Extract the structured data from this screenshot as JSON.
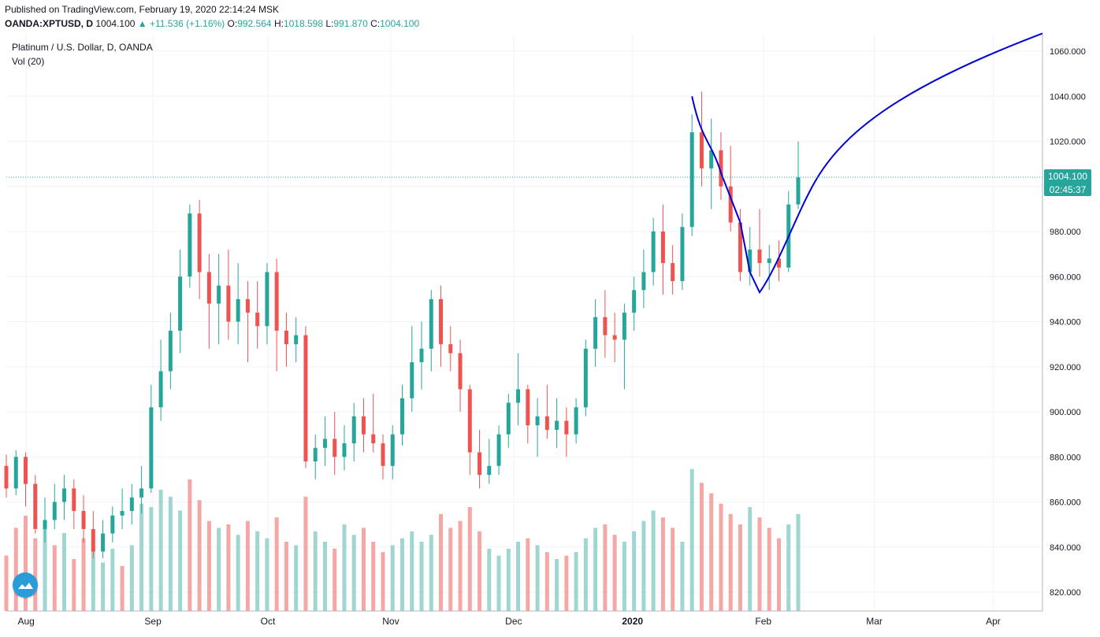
{
  "header": {
    "published": "Published on TradingView.com, February 19, 2020 22:14:24 MSK",
    "symbol": "OANDA:XPTUSD, D",
    "last": "1004.100",
    "change_icon": "triangle-up-icon",
    "change": "+11.536 (+1.16%)",
    "o_label": "O:",
    "o_value": "992.564",
    "h_label": "H:",
    "h_value": "1018.598",
    "l_label": "L:",
    "l_value": "991.870",
    "c_label": "C:",
    "c_value": "1004.100"
  },
  "legend": {
    "title": "Platinum / U.S. Dollar, D, OANDA",
    "volume": "Vol (20)"
  },
  "price_tag": {
    "value": "1004.100",
    "countdown": "02:45:37"
  },
  "colors": {
    "up": "#26a69a",
    "down": "#ef5350",
    "vol_up": "#9fd6d0",
    "vol_down": "#f4a7a5",
    "projection": "#0000d6",
    "tag": "#26a69a"
  },
  "logo_icon": "tradingview-cloud-icon",
  "chart_data": {
    "type": "candlestick",
    "y_ticks": [
      "820.000",
      "840.000",
      "860.000",
      "880.000",
      "900.000",
      "920.000",
      "940.000",
      "960.000",
      "980.000",
      "1000.000",
      "1020.000",
      "1040.000",
      "1060.000"
    ],
    "x_labels": [
      {
        "label": "Aug",
        "date": "2019-08-01"
      },
      {
        "label": "Sep",
        "date": "2019-09-02"
      },
      {
        "label": "Oct",
        "date": "2019-10-01"
      },
      {
        "label": "Nov",
        "date": "2019-11-01"
      },
      {
        "label": "Dec",
        "date": "2019-12-02"
      },
      {
        "label": "2020",
        "date": "2020-01-01"
      },
      {
        "label": "Feb",
        "date": "2020-02-03"
      },
      {
        "label": "Mar",
        "date": "2020-03-02"
      },
      {
        "label": "Apr",
        "date": "2020-04-01"
      }
    ],
    "ohlc": [
      [
        876,
        881,
        862,
        866
      ],
      [
        866,
        883,
        863,
        880
      ],
      [
        880,
        882,
        858,
        868
      ],
      [
        868,
        872,
        846,
        848
      ],
      [
        848,
        862,
        842,
        852
      ],
      [
        852,
        868,
        848,
        860
      ],
      [
        860,
        872,
        852,
        866
      ],
      [
        866,
        870,
        848,
        856
      ],
      [
        856,
        863,
        842,
        848
      ],
      [
        848,
        856,
        835,
        838
      ],
      [
        838,
        852,
        835,
        846
      ],
      [
        846,
        858,
        842,
        854
      ],
      [
        854,
        866,
        848,
        856
      ],
      [
        856,
        868,
        850,
        862
      ],
      [
        862,
        876,
        855,
        866
      ],
      [
        866,
        912,
        864,
        902
      ],
      [
        902,
        932,
        896,
        918
      ],
      [
        918,
        944,
        910,
        936
      ],
      [
        936,
        972,
        926,
        960
      ],
      [
        960,
        992,
        955,
        988
      ],
      [
        988,
        994,
        950,
        962
      ],
      [
        962,
        970,
        928,
        948
      ],
      [
        948,
        970,
        930,
        956
      ],
      [
        956,
        972,
        932,
        940
      ],
      [
        940,
        966,
        930,
        950
      ],
      [
        950,
        958,
        922,
        944
      ],
      [
        944,
        958,
        928,
        938
      ],
      [
        938,
        966,
        930,
        962
      ],
      [
        962,
        968,
        918,
        936
      ],
      [
        936,
        944,
        920,
        930
      ],
      [
        930,
        942,
        922,
        934
      ],
      [
        934,
        938,
        875,
        878
      ],
      [
        878,
        890,
        870,
        884
      ],
      [
        884,
        898,
        876,
        888
      ],
      [
        888,
        900,
        872,
        880
      ],
      [
        880,
        894,
        874,
        886
      ],
      [
        886,
        904,
        878,
        898
      ],
      [
        898,
        906,
        882,
        890
      ],
      [
        890,
        908,
        882,
        886
      ],
      [
        886,
        890,
        870,
        876
      ],
      [
        876,
        894,
        870,
        890
      ],
      [
        890,
        912,
        885,
        906
      ],
      [
        906,
        938,
        900,
        922
      ],
      [
        922,
        940,
        910,
        928
      ],
      [
        928,
        954,
        918,
        950
      ],
      [
        950,
        956,
        920,
        930
      ],
      [
        930,
        938,
        918,
        926
      ],
      [
        926,
        932,
        900,
        910
      ],
      [
        910,
        912,
        872,
        882
      ],
      [
        882,
        892,
        866,
        872
      ],
      [
        872,
        888,
        868,
        876
      ],
      [
        876,
        894,
        872,
        890
      ],
      [
        890,
        908,
        884,
        904
      ],
      [
        904,
        926,
        894,
        910
      ],
      [
        910,
        912,
        886,
        894
      ],
      [
        894,
        906,
        880,
        898
      ],
      [
        898,
        912,
        888,
        892
      ],
      [
        892,
        906,
        884,
        896
      ],
      [
        896,
        902,
        880,
        890
      ],
      [
        890,
        906,
        886,
        902
      ],
      [
        902,
        932,
        898,
        928
      ],
      [
        928,
        950,
        920,
        942
      ],
      [
        942,
        954,
        924,
        934
      ],
      [
        934,
        944,
        922,
        932
      ],
      [
        932,
        948,
        910,
        944
      ],
      [
        944,
        960,
        936,
        954
      ],
      [
        954,
        972,
        946,
        962
      ],
      [
        962,
        986,
        956,
        980
      ],
      [
        980,
        992,
        952,
        966
      ],
      [
        966,
        974,
        952,
        958
      ],
      [
        958,
        988,
        954,
        982
      ],
      [
        982,
        1032,
        978,
        1024
      ],
      [
        1024,
        1042,
        1000,
        1008
      ],
      [
        1008,
        1030,
        990,
        1016
      ],
      [
        1016,
        1024,
        994,
        1000
      ],
      [
        1000,
        1018,
        980,
        984
      ],
      [
        984,
        990,
        958,
        962
      ],
      [
        962,
        982,
        956,
        972
      ],
      [
        972,
        990,
        960,
        966
      ],
      [
        966,
        974,
        954,
        968
      ],
      [
        968,
        976,
        958,
        964
      ],
      [
        964,
        998,
        962,
        992
      ],
      [
        992,
        1020,
        990,
        1004
      ]
    ],
    "volume": [
      [
        32,
        "down"
      ],
      [
        48,
        "down"
      ],
      [
        55,
        "down"
      ],
      [
        42,
        "down"
      ],
      [
        50,
        "up"
      ],
      [
        38,
        "down"
      ],
      [
        45,
        "up"
      ],
      [
        30,
        "down"
      ],
      [
        42,
        "down"
      ],
      [
        36,
        "up"
      ],
      [
        28,
        "up"
      ],
      [
        36,
        "up"
      ],
      [
        26,
        "down"
      ],
      [
        38,
        "up"
      ],
      [
        62,
        "up"
      ],
      [
        60,
        "up"
      ],
      [
        70,
        "up"
      ],
      [
        66,
        "up"
      ],
      [
        58,
        "up"
      ],
      [
        76,
        "down"
      ],
      [
        64,
        "down"
      ],
      [
        52,
        "down"
      ],
      [
        48,
        "up"
      ],
      [
        50,
        "down"
      ],
      [
        44,
        "up"
      ],
      [
        52,
        "down"
      ],
      [
        46,
        "up"
      ],
      [
        42,
        "up"
      ],
      [
        54,
        "down"
      ],
      [
        40,
        "down"
      ],
      [
        38,
        "up"
      ],
      [
        66,
        "down"
      ],
      [
        46,
        "up"
      ],
      [
        40,
        "up"
      ],
      [
        36,
        "down"
      ],
      [
        50,
        "up"
      ],
      [
        44,
        "up"
      ],
      [
        48,
        "down"
      ],
      [
        40,
        "down"
      ],
      [
        34,
        "down"
      ],
      [
        38,
        "up"
      ],
      [
        42,
        "up"
      ],
      [
        46,
        "up"
      ],
      [
        40,
        "up"
      ],
      [
        44,
        "up"
      ],
      [
        56,
        "down"
      ],
      [
        48,
        "down"
      ],
      [
        52,
        "down"
      ],
      [
        60,
        "down"
      ],
      [
        46,
        "down"
      ],
      [
        36,
        "up"
      ],
      [
        32,
        "up"
      ],
      [
        36,
        "up"
      ],
      [
        40,
        "up"
      ],
      [
        42,
        "down"
      ],
      [
        38,
        "up"
      ],
      [
        34,
        "down"
      ],
      [
        30,
        "up"
      ],
      [
        32,
        "down"
      ],
      [
        34,
        "up"
      ],
      [
        42,
        "up"
      ],
      [
        48,
        "up"
      ],
      [
        50,
        "down"
      ],
      [
        44,
        "down"
      ],
      [
        40,
        "up"
      ],
      [
        46,
        "up"
      ],
      [
        52,
        "up"
      ],
      [
        58,
        "up"
      ],
      [
        54,
        "down"
      ],
      [
        48,
        "down"
      ],
      [
        40,
        "up"
      ],
      [
        82,
        "up"
      ],
      [
        74,
        "down"
      ],
      [
        68,
        "down"
      ],
      [
        62,
        "down"
      ],
      [
        56,
        "down"
      ],
      [
        50,
        "down"
      ],
      [
        60,
        "up"
      ],
      [
        54,
        "down"
      ],
      [
        48,
        "down"
      ],
      [
        42,
        "down"
      ],
      [
        50,
        "up"
      ],
      [
        56,
        "up"
      ]
    ]
  }
}
